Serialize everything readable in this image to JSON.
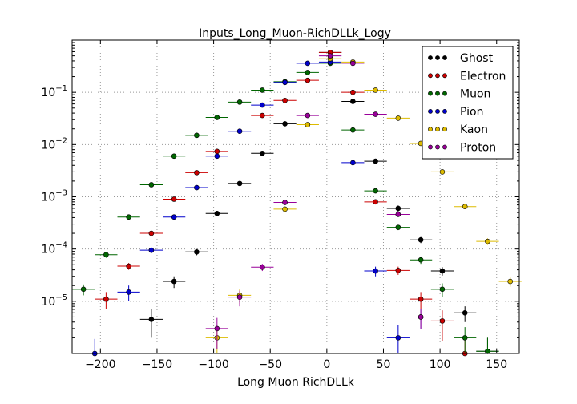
{
  "chart_data": {
    "type": "scatter",
    "title": "Inputs_Long_Muon-RichDLLk_Logy",
    "xlabel": "Long Muon RichDLLk",
    "ylabel": "",
    "xlim": [
      -225,
      170
    ],
    "ylim": [
      1e-06,
      1.0
    ],
    "yscale": "log",
    "grid": true,
    "legend_position": "top-right",
    "xticks": [
      {
        "value": -200,
        "label": "−200"
      },
      {
        "value": -150,
        "label": "−150"
      },
      {
        "value": -100,
        "label": "−100"
      },
      {
        "value": -50,
        "label": "−50"
      },
      {
        "value": 0,
        "label": "0"
      },
      {
        "value": 50,
        "label": "50"
      },
      {
        "value": 100,
        "label": "100"
      },
      {
        "value": 150,
        "label": "150"
      }
    ],
    "yticks": [
      {
        "value": 1e-05,
        "base": "10",
        "exp": "−5"
      },
      {
        "value": 0.0001,
        "base": "10",
        "exp": "−4"
      },
      {
        "value": 0.001,
        "base": "10",
        "exp": "−3"
      },
      {
        "value": 0.01,
        "base": "10",
        "exp": "−2"
      },
      {
        "value": 0.1,
        "base": "10",
        "exp": "−1"
      }
    ],
    "series": [
      {
        "name": "Ghost",
        "color": "#000000",
        "points": [
          [
            -155,
            4.5e-06,
            2.5e-06
          ],
          [
            -135,
            2.4e-05,
            6e-06
          ],
          [
            -115,
            8.8e-05,
            1.2e-05
          ],
          [
            -97,
            0.00048,
            4e-05
          ],
          [
            -77,
            0.0018,
            0.0001
          ],
          [
            -57,
            0.0068,
            0.0003
          ],
          [
            -37,
            0.025,
            0.0006
          ],
          [
            3,
            0.58,
            0.005
          ],
          [
            23,
            0.067,
            0.001
          ],
          [
            43,
            0.0048,
            0.0003
          ],
          [
            63,
            0.0006,
            8e-05
          ],
          [
            83,
            0.00015,
            2e-05
          ],
          [
            102,
            3.8e-05,
            7e-06
          ],
          [
            122,
            6e-06,
            2e-06
          ],
          [
            142,
            1.1e-06,
            9e-07
          ]
        ]
      },
      {
        "name": "Electron",
        "color": "#cc0000",
        "points": [
          [
            -195,
            1.1e-05,
            4e-06
          ],
          [
            -175,
            4.7e-05,
            7e-06
          ],
          [
            -155,
            0.0002,
            2e-05
          ],
          [
            -135,
            0.0009,
            5e-05
          ],
          [
            -115,
            0.0029,
            0.0001
          ],
          [
            -97,
            0.0074,
            0.0003
          ],
          [
            -57,
            0.036,
            0.001
          ],
          [
            -37,
            0.07,
            0.001
          ],
          [
            -17,
            0.17,
            0.003
          ],
          [
            3,
            0.58,
            0.005
          ],
          [
            23,
            0.1,
            0.002
          ],
          [
            43,
            0.0008,
            6e-05
          ],
          [
            63,
            3.9e-05,
            7e-06
          ],
          [
            83,
            1.1e-05,
            4e-06
          ],
          [
            102,
            4.2e-06,
            2.5e-06
          ],
          [
            122,
            1e-06,
            9e-07
          ]
        ]
      },
      {
        "name": "Muon",
        "color": "#006600",
        "points": [
          [
            -215,
            1.7e-05,
            4e-06
          ],
          [
            -195,
            7.8e-05,
            1e-05
          ],
          [
            -175,
            0.00041,
            3e-05
          ],
          [
            -155,
            0.0017,
            0.0001
          ],
          [
            -135,
            0.006,
            0.0002
          ],
          [
            -115,
            0.015,
            0.0004
          ],
          [
            -97,
            0.033,
            0.0008
          ],
          [
            -77,
            0.065,
            0.001
          ],
          [
            -57,
            0.11,
            0.002
          ],
          [
            -37,
            0.16,
            0.003
          ],
          [
            -17,
            0.24,
            0.004
          ],
          [
            3,
            0.36,
            0.005
          ],
          [
            23,
            0.019,
            0.0006
          ],
          [
            43,
            0.0013,
            8e-05
          ],
          [
            63,
            0.00026,
            3e-05
          ],
          [
            83,
            6.2e-05,
            1e-05
          ],
          [
            102,
            1.7e-05,
            5e-06
          ],
          [
            122,
            2e-06,
            1.2e-06
          ],
          [
            142,
            1.1e-06,
            9e-07
          ]
        ]
      },
      {
        "name": "Pion",
        "color": "#0000cc",
        "points": [
          [
            -205,
            1e-06,
            9e-07
          ],
          [
            -175,
            1.5e-05,
            5e-06
          ],
          [
            -155,
            9.5e-05,
            1.2e-05
          ],
          [
            -135,
            0.00041,
            3e-05
          ],
          [
            -115,
            0.0015,
            0.0001
          ],
          [
            -97,
            0.006,
            0.0002
          ],
          [
            -77,
            0.018,
            0.0005
          ],
          [
            -57,
            0.057,
            0.001
          ],
          [
            -37,
            0.155,
            0.003
          ],
          [
            -17,
            0.36,
            0.005
          ],
          [
            3,
            0.38,
            0.005
          ],
          [
            23,
            0.0045,
            0.0003
          ],
          [
            43,
            3.8e-05,
            8e-06
          ],
          [
            63,
            2e-06,
            1.5e-06
          ],
          [
            83,
            5e-06,
            2e-06
          ]
        ]
      },
      {
        "name": "Kaon",
        "color": "#ddbb00",
        "points": [
          [
            -97,
            2e-06,
            1.2e-06
          ],
          [
            -77,
            1.3e-05,
            4e-06
          ],
          [
            -37,
            0.00058,
            4e-05
          ],
          [
            -17,
            0.024,
            0.0006
          ],
          [
            3,
            0.44,
            0.005
          ],
          [
            23,
            0.38,
            0.005
          ],
          [
            43,
            0.11,
            0.002
          ],
          [
            63,
            0.032,
            0.0008
          ],
          [
            83,
            0.0105,
            0.0004
          ],
          [
            102,
            0.003,
            0.0002
          ],
          [
            122,
            0.00065,
            5e-05
          ],
          [
            142,
            0.00014,
            2e-05
          ],
          [
            162,
            2.4e-05,
            5e-06
          ]
        ]
      },
      {
        "name": "Proton",
        "color": "#990099",
        "points": [
          [
            -97,
            3e-06,
            1.8e-06
          ],
          [
            -77,
            1.2e-05,
            4e-06
          ],
          [
            -57,
            4.5e-05,
            7e-06
          ],
          [
            -37,
            0.00078,
            5e-05
          ],
          [
            -17,
            0.036,
            0.001
          ],
          [
            3,
            0.5,
            0.005
          ],
          [
            23,
            0.36,
            0.005
          ],
          [
            43,
            0.038,
            0.001
          ],
          [
            63,
            0.00046,
            4e-05
          ],
          [
            83,
            5e-06,
            2e-06
          ]
        ]
      }
    ]
  }
}
